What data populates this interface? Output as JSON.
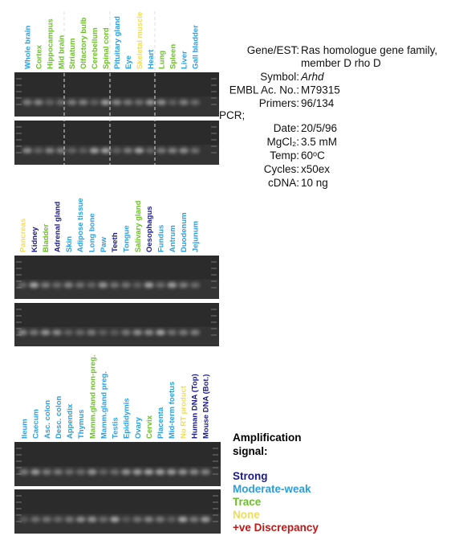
{
  "panels": [
    {
      "lanes": [
        {
          "label": "Whole brain",
          "color": "#2a9fe0"
        },
        {
          "label": "Cortex",
          "color": "#6cbf2a"
        },
        {
          "label": "Hippocampus",
          "color": "#6cbf2a"
        },
        {
          "label": "Mid brain",
          "color": "#6cbf2a"
        },
        {
          "label": "Striatum",
          "color": "#6cbf2a"
        },
        {
          "label": "Olfactory bulb",
          "color": "#6cbf2a"
        },
        {
          "label": "Cerebellum",
          "color": "#6cbf2a"
        },
        {
          "label": "Spinal cord",
          "color": "#6cbf2a"
        },
        {
          "label": "Pituitary gland",
          "color": "#2a9fe0"
        },
        {
          "label": "Eye",
          "color": "#2a9fe0"
        },
        {
          "label": "Skeletal muscle",
          "color": "#f0dc5c"
        },
        {
          "label": "Heart",
          "color": "#2a9fe0"
        },
        {
          "label": "Lung",
          "color": "#6cbf2a"
        },
        {
          "label": "Spleen",
          "color": "#6cbf2a"
        },
        {
          "label": "Liver",
          "color": "#2a9fe0"
        },
        {
          "label": "Gall bladder",
          "color": "#2a9fe0"
        }
      ]
    },
    {
      "lanes": [
        {
          "label": "Pancreas",
          "color": "#f0dc5c"
        },
        {
          "label": "Kidney",
          "color": "#1a1a8c"
        },
        {
          "label": "Bladder",
          "color": "#6cbf2a"
        },
        {
          "label": "Adrenal gland",
          "color": "#1a1a8c"
        },
        {
          "label": "Skin",
          "color": "#2a9fe0"
        },
        {
          "label": "Adipose tissue",
          "color": "#2a9fe0"
        },
        {
          "label": "Long bone",
          "color": "#2a9fe0"
        },
        {
          "label": "Paw",
          "color": "#2a9fe0"
        },
        {
          "label": "Teeth",
          "color": "#1a1a8c"
        },
        {
          "label": "Tongue",
          "color": "#2a9fe0"
        },
        {
          "label": "Salivary gland",
          "color": "#6cbf2a"
        },
        {
          "label": "Oesophagus",
          "color": "#1a1a8c"
        },
        {
          "label": "Fundus",
          "color": "#2a9fe0"
        },
        {
          "label": "Antrum",
          "color": "#2a9fe0"
        },
        {
          "label": "Duodenum",
          "color": "#2a9fe0"
        },
        {
          "label": "Jejunum",
          "color": "#2a9fe0"
        }
      ]
    },
    {
      "lanes": [
        {
          "label": "Ileum",
          "color": "#2a9fe0"
        },
        {
          "label": "Caecum",
          "color": "#2a9fe0"
        },
        {
          "label": "Asc. colon",
          "color": "#2a9fe0"
        },
        {
          "label": "Desc. colon",
          "color": "#2a9fe0"
        },
        {
          "label": "Appendix",
          "color": "#2a9fe0"
        },
        {
          "label": "Thymus",
          "color": "#2a9fe0"
        },
        {
          "label": "Mamm.gland non-preg.",
          "color": "#6cbf2a"
        },
        {
          "label": "Mamm.gland preg.",
          "color": "#2a9fe0"
        },
        {
          "label": "Testis",
          "color": "#2a9fe0"
        },
        {
          "label": "Epididymis",
          "color": "#2a9fe0"
        },
        {
          "label": "Ovary",
          "color": "#2a9fe0"
        },
        {
          "label": "Cervix",
          "color": "#6cbf2a"
        },
        {
          "label": "Placenta",
          "color": "#2a9fe0"
        },
        {
          "label": "Mid-term foetus",
          "color": "#2a9fe0"
        },
        {
          "label": "No RT product",
          "color": "#f0dc5c"
        },
        {
          "label": "Human DNA (Top)",
          "color": "#1a1a8c"
        },
        {
          "label": "Mouse DNA (Bot.)",
          "color": "#1a1a8c"
        }
      ]
    }
  ],
  "info": {
    "gene": {
      "label": "Gene/EST:",
      "value": [
        "Ras homologue gene family,",
        "member D rho D"
      ]
    },
    "rows": [
      {
        "label": "Symbol:",
        "value": "Arhd"
      },
      {
        "label": "EMBL Ac. No.:",
        "value": "M79315"
      },
      {
        "label": "Primers:",
        "value": "96/134"
      }
    ],
    "pcr_heading": "PCR;",
    "pcr_rows": [
      {
        "label": "Date:",
        "value": "20/5/96"
      },
      {
        "label": "MgCl₂:",
        "value": "3.5 mM"
      },
      {
        "label": "Temp:",
        "value": "60ᵒC"
      },
      {
        "label": "Cycles:",
        "value": "x50ex"
      },
      {
        "label": "cDNA:",
        "value": "10 ng"
      }
    ]
  },
  "legend": {
    "title": [
      "Amplification",
      "signal:"
    ],
    "items": [
      {
        "label": "Strong",
        "color": "#1a1a8c"
      },
      {
        "label": "Moderate-weak",
        "color": "#2a9fe0"
      },
      {
        "label": "Trace",
        "color": "#6cbf2a"
      },
      {
        "label": "None",
        "color": "#f0dc5c"
      },
      {
        "label": "+ve Discrepancy",
        "color": "#c01818"
      }
    ]
  }
}
